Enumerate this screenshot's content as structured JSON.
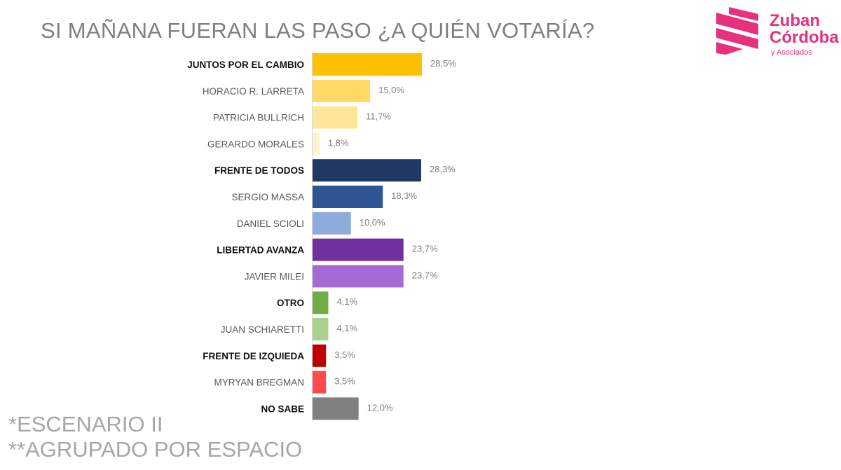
{
  "chart_data": {
    "type": "bar",
    "orientation": "horizontal",
    "title": "SI MAÑANA FUERAN LAS PASO ¿A QUIÉN VOTARÍA?",
    "categories": [
      "JUNTOS POR EL CAMBIO",
      "HORACIO R. LARRETA",
      "PATRICIA BULLRICH",
      "GERARDO MORALES",
      "FRENTE DE TODOS",
      "SERGIO MASSA",
      "DANIEL SCIOLI",
      "LIBERTAD AVANZA",
      "JAVIER MILEI",
      "OTRO",
      "JUAN SCHIARETTI",
      "FRENTE DE IZQUIEDA",
      "MYRYAN BREGMAN",
      "NO SABE"
    ],
    "values": [
      28.5,
      15.0,
      11.7,
      1.8,
      28.3,
      18.3,
      10.0,
      23.7,
      23.7,
      4.1,
      4.1,
      3.5,
      3.5,
      12.0
    ],
    "value_labels": [
      "28,5%",
      "15,0%",
      "11,7%",
      "1,8%",
      "28,3%",
      "18,3%",
      "10,0%",
      "23,7%",
      "23,7%",
      "4,1%",
      "4,1%",
      "3,5%",
      "3,5%",
      "12,0%"
    ],
    "group_header": [
      true,
      false,
      false,
      false,
      true,
      false,
      false,
      true,
      false,
      true,
      false,
      true,
      false,
      true
    ],
    "colors": [
      "#FFC000",
      "#FFD966",
      "#FFE699",
      "#FFF2CC",
      "#1F3864",
      "#2F5597",
      "#8FAADC",
      "#7030A0",
      "#A56AD6",
      "#70AD47",
      "#A9D18E",
      "#C00000",
      "#FF4B4B",
      "#808080"
    ],
    "xlim": [
      0,
      30
    ],
    "xlabel": "",
    "ylabel": "",
    "grid": false,
    "legend": "none"
  },
  "footnotes": [
    "*ESCENARIO II",
    "**AGRUPADO POR ESPACIO"
  ],
  "logo": {
    "line1": "Zuban",
    "line2": "Córdoba",
    "line3": "y Asociados",
    "color": "#E6317F"
  }
}
